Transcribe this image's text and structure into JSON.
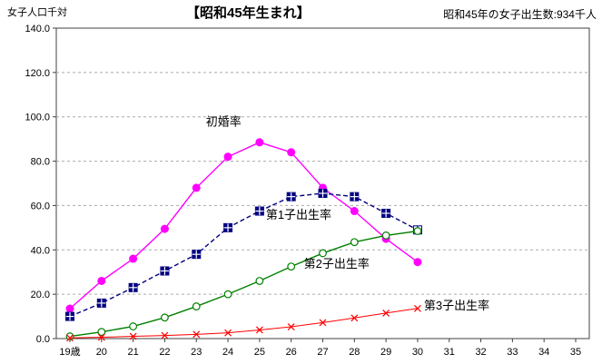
{
  "chart_data": {
    "type": "line",
    "title": "【昭和45年生まれ】",
    "note": "昭和45年の女子出生数:934千人",
    "y_axis_unit": "女子人口千対",
    "ylim": [
      0,
      140
    ],
    "y_ticks": [
      "0.0",
      "20.0",
      "40.0",
      "60.0",
      "80.0",
      "100.0",
      "120.0",
      "140.0"
    ],
    "grid": true,
    "legend": "none",
    "x_values": [
      19,
      20,
      21,
      22,
      23,
      24,
      25,
      26,
      27,
      28,
      29,
      30,
      31,
      32,
      33,
      34,
      35
    ],
    "x_tick_labels": [
      "19歳",
      "20",
      "21",
      "22",
      "23",
      "24",
      "25",
      "26",
      "27",
      "28",
      "29",
      "30",
      "31",
      "32",
      "33",
      "34",
      "35"
    ],
    "series_ages": [
      19,
      20,
      21,
      22,
      23,
      24,
      25,
      26,
      27,
      28,
      29,
      30
    ],
    "series": [
      {
        "name": "初婚率",
        "id": "first-marriage-rate",
        "color": "#ff00ff",
        "marker": "filled-circle",
        "line_style": "solid",
        "values": [
          13.5,
          26,
          36,
          49.5,
          68,
          82,
          88.5,
          84,
          68,
          57.5,
          45,
          34.5
        ]
      },
      {
        "name": "第1子出生率",
        "id": "first-child-birth-rate",
        "color": "#000080",
        "marker": "square-plus",
        "line_style": "dashed",
        "last_marker_open": true,
        "values": [
          10,
          16,
          23,
          30.5,
          38,
          50,
          57.5,
          64,
          65.5,
          64,
          56.5,
          49
        ]
      },
      {
        "name": "第2子出生率",
        "id": "second-child-birth-rate",
        "color": "#008000",
        "marker": "open-circle",
        "line_style": "solid",
        "values": [
          1,
          3,
          5.5,
          9.5,
          14.5,
          20,
          26,
          32.5,
          38.5,
          43.5,
          46.5,
          48.5
        ]
      },
      {
        "name": "第3子出生率",
        "id": "third-child-birth-rate",
        "color": "#ff0000",
        "marker": "x",
        "line_style": "solid",
        "values": [
          0.3,
          0.6,
          1,
          1.4,
          1.9,
          2.6,
          3.9,
          5.3,
          7.2,
          9.3,
          11.5,
          13.6
        ]
      }
    ],
    "annotations": [
      {
        "name": "series-label-first-marriage",
        "text": "初婚率",
        "x": 23.3,
        "y": 96
      },
      {
        "name": "series-label-first-child",
        "text": "第1子出生率",
        "x": 25.2,
        "y": 54
      },
      {
        "name": "series-label-second-child",
        "text": "第2子出生率",
        "x": 26.4,
        "y": 32
      },
      {
        "name": "series-label-third-child",
        "text": "第3子出生率",
        "x": 30.2,
        "y": 13
      }
    ]
  }
}
